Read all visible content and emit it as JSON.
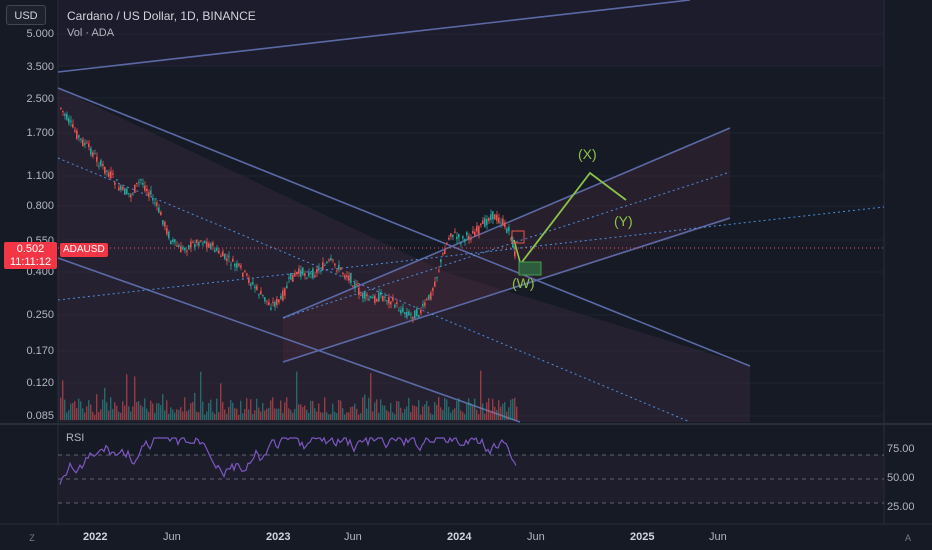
{
  "header": {
    "currency": "USD",
    "title": "Cardano / US Dollar, 1D, BINANCE",
    "volume_label": "Vol · ADA"
  },
  "price_scale": [
    "5.000",
    "3.500",
    "2.500",
    "1.700",
    "1.100",
    "0.800",
    "0.550",
    "0.400",
    "0.250",
    "0.170",
    "0.120",
    "0.085"
  ],
  "current": {
    "price": "0.502",
    "countdown": "11:11:12",
    "symbol": "ADAUSD"
  },
  "time_axis": [
    {
      "label": "2022",
      "bold": true
    },
    {
      "label": "Jun",
      "bold": false
    },
    {
      "label": "2023",
      "bold": true
    },
    {
      "label": "Jun",
      "bold": false
    },
    {
      "label": "2024",
      "bold": true
    },
    {
      "label": "Jun",
      "bold": false
    },
    {
      "label": "2025",
      "bold": true
    },
    {
      "label": "Jun",
      "bold": false
    }
  ],
  "rsi": {
    "label": "RSI",
    "levels": [
      "75.00",
      "50.00",
      "25.00"
    ]
  },
  "annotations": {
    "x": "(X)",
    "y": "(Y)",
    "w": "(W)"
  },
  "corner": {
    "left": "Z",
    "right": "A"
  },
  "colors": {
    "background": "#161a25",
    "up": "#26a69a",
    "down": "#ef5350",
    "channel_line": "#5b6aa6",
    "channel_fill": "#3a2a3f",
    "dotted_line": "#4a90e2",
    "wave": "#8bc34a",
    "rsi_line": "#7e57c2",
    "price_tag": "#f23645"
  }
}
